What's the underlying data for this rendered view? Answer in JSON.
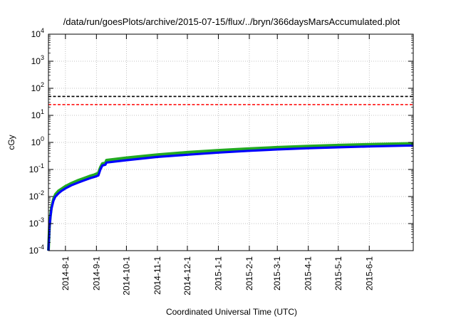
{
  "chart_data": {
    "type": "line",
    "title": "/data/run/goesPlots/archive/2015-07-15/flux/../bryn/366daysMarsAccumulated.plot",
    "xlabel": "Coordinated Universal Time (UTC)",
    "ylabel": "cGy",
    "y_scale": "log",
    "ylim": [
      0.0001,
      10000
    ],
    "xlim": [
      "2014-07-15",
      "2015-07-15"
    ],
    "grid": true,
    "y_ticks": [
      {
        "base": "10",
        "exp": "-4",
        "value": 0.0001
      },
      {
        "base": "10",
        "exp": "-3",
        "value": 0.001
      },
      {
        "base": "10",
        "exp": "-2",
        "value": 0.01
      },
      {
        "base": "10",
        "exp": "-1",
        "value": 0.1
      },
      {
        "base": "10",
        "exp": "0",
        "value": 1
      },
      {
        "base": "10",
        "exp": "1",
        "value": 10
      },
      {
        "base": "10",
        "exp": "2",
        "value": 100
      },
      {
        "base": "10",
        "exp": "3",
        "value": 1000
      },
      {
        "base": "10",
        "exp": "4",
        "value": 10000
      }
    ],
    "x_ticks": [
      {
        "label": "2014-8-1",
        "date": "2014-08-01"
      },
      {
        "label": "2014-9-1",
        "date": "2014-09-01"
      },
      {
        "label": "2014-10-1",
        "date": "2014-10-01"
      },
      {
        "label": "2014-11-1",
        "date": "2014-11-01"
      },
      {
        "label": "2014-12-1",
        "date": "2014-12-01"
      },
      {
        "label": "2015-1-1",
        "date": "2015-01-01"
      },
      {
        "label": "2015-2-1",
        "date": "2015-02-01"
      },
      {
        "label": "2015-3-1",
        "date": "2015-03-01"
      },
      {
        "label": "2015-4-1",
        "date": "2015-04-01"
      },
      {
        "label": "2015-5-1",
        "date": "2015-05-01"
      },
      {
        "label": "2015-6-1",
        "date": "2015-06-01"
      }
    ],
    "reference_lines": [
      {
        "value": 50,
        "color": "#000000",
        "style": "dashed"
      },
      {
        "value": 25,
        "color": "#ff0000",
        "style": "dashed"
      }
    ],
    "series": [
      {
        "color": "#22aa22",
        "points": [
          [
            "2014-07-15",
            0.0001
          ],
          [
            "2014-07-16",
            0.0008
          ],
          [
            "2014-07-17",
            0.002
          ],
          [
            "2014-07-18",
            0.004
          ],
          [
            "2014-07-20",
            0.008
          ],
          [
            "2014-07-22",
            0.012
          ],
          [
            "2014-07-25",
            0.016
          ],
          [
            "2014-07-28",
            0.019
          ],
          [
            "2014-08-01",
            0.024
          ],
          [
            "2014-08-07",
            0.031
          ],
          [
            "2014-08-14",
            0.04
          ],
          [
            "2014-08-20",
            0.048
          ],
          [
            "2014-08-26",
            0.058
          ],
          [
            "2014-08-30",
            0.064
          ],
          [
            "2014-09-03",
            0.074
          ],
          [
            "2014-09-05",
            0.12
          ],
          [
            "2014-09-07",
            0.165
          ],
          [
            "2014-09-10",
            0.175
          ],
          [
            "2014-09-11",
            0.22
          ],
          [
            "2014-10-01",
            0.27
          ],
          [
            "2014-11-01",
            0.35
          ],
          [
            "2014-12-01",
            0.43
          ],
          [
            "2015-01-01",
            0.51
          ],
          [
            "2015-02-01",
            0.59
          ],
          [
            "2015-03-01",
            0.66
          ],
          [
            "2015-04-01",
            0.73
          ],
          [
            "2015-05-01",
            0.79
          ],
          [
            "2015-06-01",
            0.85
          ],
          [
            "2015-07-15",
            0.92
          ]
        ]
      },
      {
        "color": "#0000ff",
        "points": [
          [
            "2014-07-15",
            0.0001
          ],
          [
            "2014-07-16",
            0.0007
          ],
          [
            "2014-07-17",
            0.0018
          ],
          [
            "2014-07-18",
            0.0035
          ],
          [
            "2014-07-20",
            0.007
          ],
          [
            "2014-07-22",
            0.01
          ],
          [
            "2014-07-25",
            0.013
          ],
          [
            "2014-07-28",
            0.016
          ],
          [
            "2014-08-01",
            0.02
          ],
          [
            "2014-08-07",
            0.026
          ],
          [
            "2014-08-14",
            0.033
          ],
          [
            "2014-08-20",
            0.04
          ],
          [
            "2014-08-26",
            0.048
          ],
          [
            "2014-08-30",
            0.053
          ],
          [
            "2014-09-03",
            0.06
          ],
          [
            "2014-09-05",
            0.1
          ],
          [
            "2014-09-07",
            0.14
          ],
          [
            "2014-09-10",
            0.15
          ],
          [
            "2014-09-11",
            0.18
          ],
          [
            "2014-10-01",
            0.22
          ],
          [
            "2014-11-01",
            0.29
          ],
          [
            "2014-12-01",
            0.35
          ],
          [
            "2015-01-01",
            0.42
          ],
          [
            "2015-02-01",
            0.49
          ],
          [
            "2015-03-01",
            0.55
          ],
          [
            "2015-04-01",
            0.61
          ],
          [
            "2015-05-01",
            0.66
          ],
          [
            "2015-06-01",
            0.71
          ],
          [
            "2015-07-15",
            0.77
          ]
        ]
      }
    ]
  }
}
